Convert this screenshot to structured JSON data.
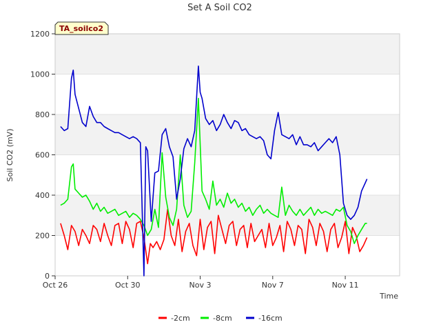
{
  "chart_data": {
    "type": "line",
    "title": "Set A Soil CO2",
    "xlabel": "Time",
    "ylabel": "Soil CO2 (mV)",
    "badge": "TA_soilco2",
    "ylim": [
      0,
      1200
    ],
    "yticks": [
      0,
      200,
      400,
      600,
      800,
      1000,
      1200
    ],
    "xlim": [
      0,
      19
    ],
    "xticks": [
      {
        "day": 0,
        "label": "Oct 26"
      },
      {
        "day": 4,
        "label": "Oct 30"
      },
      {
        "day": 8,
        "label": "Nov 3"
      },
      {
        "day": 12,
        "label": "Nov 7"
      },
      {
        "day": 16,
        "label": "Nov 11"
      }
    ],
    "grid": "alternating horizontal bands",
    "legend_position": "bottom-center",
    "series": [
      {
        "name": "-2cm",
        "color": "#ff0000",
        "x": [
          0.3,
          0.5,
          0.7,
          0.9,
          1.1,
          1.3,
          1.5,
          1.7,
          1.9,
          2.1,
          2.3,
          2.5,
          2.7,
          2.9,
          3.1,
          3.3,
          3.5,
          3.7,
          3.9,
          4.1,
          4.3,
          4.5,
          4.7,
          4.9,
          5.1,
          5.25,
          5.4,
          5.6,
          5.8,
          6.0,
          6.2,
          6.4,
          6.6,
          6.8,
          7.0,
          7.2,
          7.4,
          7.6,
          7.8,
          8.0,
          8.2,
          8.4,
          8.6,
          8.8,
          9.0,
          9.2,
          9.4,
          9.6,
          9.8,
          10.0,
          10.2,
          10.4,
          10.6,
          10.8,
          11.0,
          11.2,
          11.4,
          11.6,
          11.8,
          12.0,
          12.2,
          12.4,
          12.6,
          12.8,
          13.0,
          13.2,
          13.4,
          13.6,
          13.8,
          14.0,
          14.2,
          14.4,
          14.6,
          14.8,
          15.0,
          15.2,
          15.4,
          15.6,
          15.8,
          16.0,
          16.2,
          16.4,
          16.6,
          16.8,
          17.0,
          17.2
        ],
        "values": [
          260,
          200,
          130,
          250,
          220,
          150,
          230,
          200,
          160,
          250,
          230,
          170,
          260,
          200,
          150,
          250,
          260,
          160,
          270,
          230,
          140,
          260,
          270,
          190,
          60,
          160,
          140,
          170,
          130,
          180,
          330,
          200,
          150,
          280,
          120,
          220,
          260,
          150,
          100,
          280,
          130,
          240,
          270,
          110,
          300,
          230,
          160,
          250,
          270,
          150,
          230,
          250,
          140,
          260,
          170,
          200,
          230,
          140,
          260,
          150,
          190,
          250,
          120,
          270,
          230,
          150,
          250,
          230,
          110,
          280,
          240,
          150,
          260,
          220,
          120,
          230,
          260,
          140,
          190,
          270,
          110,
          240,
          200,
          120,
          150,
          190
        ]
      },
      {
        "name": "-8cm",
        "color": "#00ee00",
        "x": [
          0.3,
          0.5,
          0.7,
          0.9,
          1.0,
          1.1,
          1.3,
          1.5,
          1.7,
          1.9,
          2.1,
          2.3,
          2.5,
          2.7,
          2.9,
          3.1,
          3.3,
          3.5,
          3.7,
          3.9,
          4.1,
          4.3,
          4.5,
          4.7,
          4.9,
          5.1,
          5.3,
          5.5,
          5.7,
          5.9,
          6.1,
          6.3,
          6.5,
          6.7,
          6.9,
          7.1,
          7.3,
          7.5,
          7.7,
          7.9,
          8.1,
          8.3,
          8.5,
          8.7,
          8.9,
          9.1,
          9.3,
          9.5,
          9.7,
          9.9,
          10.1,
          10.3,
          10.5,
          10.7,
          10.9,
          11.1,
          11.3,
          11.5,
          11.7,
          11.9,
          12.1,
          12.3,
          12.5,
          12.7,
          12.9,
          13.1,
          13.3,
          13.5,
          13.7,
          13.9,
          14.1,
          14.3,
          14.5,
          14.7,
          14.9,
          15.1,
          15.3,
          15.5,
          15.7,
          15.9,
          16.1,
          16.3,
          16.5,
          16.7,
          16.9,
          17.1,
          17.2
        ],
        "values": [
          350,
          360,
          380,
          540,
          555,
          430,
          410,
          390,
          400,
          370,
          330,
          360,
          320,
          340,
          310,
          320,
          330,
          300,
          310,
          320,
          290,
          310,
          300,
          280,
          250,
          200,
          230,
          330,
          240,
          610,
          390,
          290,
          250,
          330,
          600,
          350,
          290,
          320,
          560,
          880,
          420,
          380,
          330,
          470,
          350,
          380,
          340,
          410,
          360,
          380,
          340,
          360,
          320,
          340,
          300,
          330,
          350,
          310,
          330,
          310,
          300,
          290,
          440,
          300,
          350,
          320,
          300,
          330,
          300,
          320,
          340,
          300,
          330,
          310,
          320,
          310,
          300,
          330,
          320,
          340,
          250,
          220,
          160,
          200,
          230,
          260,
          260
        ]
      },
      {
        "name": "-16cm",
        "color": "#0000cc",
        "x": [
          0.3,
          0.5,
          0.7,
          0.9,
          1.0,
          1.1,
          1.3,
          1.5,
          1.7,
          1.9,
          2.1,
          2.3,
          2.5,
          2.7,
          2.9,
          3.1,
          3.3,
          3.5,
          3.7,
          3.9,
          4.1,
          4.3,
          4.5,
          4.7,
          4.9,
          5.0,
          5.1,
          5.3,
          5.5,
          5.7,
          5.9,
          6.1,
          6.3,
          6.5,
          6.7,
          6.9,
          7.1,
          7.3,
          7.5,
          7.7,
          7.9,
          8.0,
          8.1,
          8.3,
          8.5,
          8.7,
          8.9,
          9.1,
          9.3,
          9.5,
          9.7,
          9.9,
          10.1,
          10.3,
          10.5,
          10.7,
          10.9,
          11.1,
          11.3,
          11.5,
          11.7,
          11.9,
          12.1,
          12.3,
          12.5,
          12.7,
          12.9,
          13.1,
          13.3,
          13.5,
          13.7,
          13.9,
          14.1,
          14.3,
          14.5,
          14.7,
          14.9,
          15.1,
          15.3,
          15.5,
          15.7,
          15.9,
          16.1,
          16.3,
          16.5,
          16.7,
          16.9,
          17.1,
          17.2
        ],
        "values": [
          740,
          720,
          730,
          980,
          1020,
          900,
          830,
          760,
          740,
          840,
          790,
          760,
          760,
          740,
          730,
          720,
          710,
          710,
          700,
          690,
          680,
          690,
          680,
          660,
          0,
          640,
          620,
          270,
          510,
          520,
          700,
          730,
          640,
          590,
          380,
          480,
          630,
          680,
          640,
          720,
          1040,
          910,
          880,
          780,
          750,
          770,
          720,
          750,
          800,
          760,
          730,
          770,
          760,
          720,
          730,
          700,
          690,
          680,
          690,
          670,
          600,
          580,
          720,
          810,
          700,
          690,
          680,
          700,
          650,
          690,
          650,
          650,
          640,
          660,
          620,
          640,
          660,
          680,
          660,
          690,
          600,
          360,
          300,
          280,
          300,
          340,
          420,
          460,
          480
        ]
      }
    ]
  }
}
